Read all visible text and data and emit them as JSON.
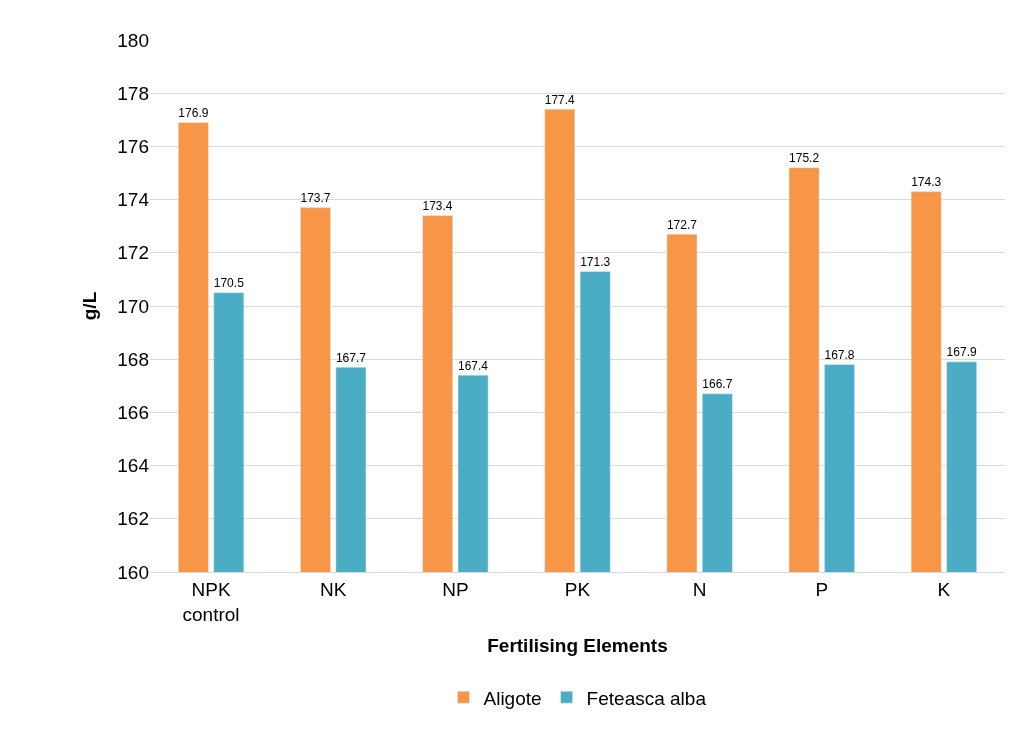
{
  "chart_data": {
    "type": "bar",
    "xlabel": "Fertilising Elements",
    "ylabel": "g/L",
    "categories": [
      "NPK control",
      "NK",
      "NP",
      "PK",
      "N",
      "P",
      "K"
    ],
    "series": [
      {
        "name": "Aligote",
        "color": "#f79646",
        "values": [
          176.9,
          173.7,
          173.4,
          177.4,
          172.7,
          175.2,
          174.3
        ]
      },
      {
        "name": "Feteasca alba",
        "color": "#4bacc6",
        "values": [
          170.5,
          167.7,
          167.4,
          171.3,
          166.7,
          167.8,
          167.9
        ]
      }
    ],
    "ylim": [
      160,
      180
    ],
    "yticks": [
      160,
      162,
      164,
      166,
      168,
      170,
      172,
      174,
      176,
      178,
      180
    ],
    "grid": "y",
    "legend": "bottom",
    "data_labels": true
  }
}
